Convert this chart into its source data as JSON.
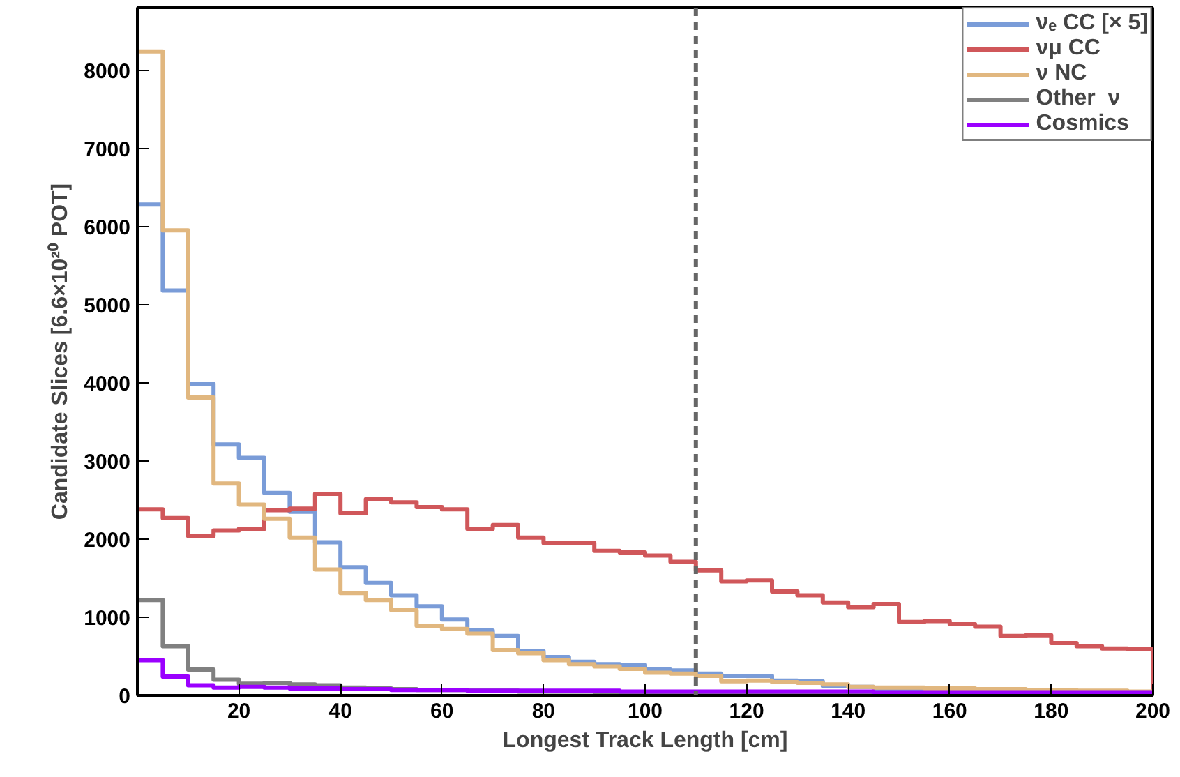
{
  "chart_data": {
    "type": "histogram",
    "xlabel": "Longest Track Length [cm]",
    "ylabel": "Candidate Slices [6.6×10²⁰ POT]",
    "bins": [
      0,
      5,
      10,
      15,
      20,
      25,
      30,
      35,
      40,
      45,
      50,
      55,
      60,
      65,
      70,
      75,
      80,
      85,
      90,
      95,
      100,
      105,
      110,
      115,
      120,
      125,
      130,
      135,
      140,
      145,
      150,
      155,
      160,
      165,
      170,
      175,
      180,
      185,
      190,
      195,
      200
    ],
    "series": [
      {
        "name": "νₑ CC [× 5]",
        "color": "#7a9cd8",
        "values": [
          6280,
          5180,
          3990,
          3210,
          3040,
          2590,
          2350,
          1960,
          1640,
          1440,
          1280,
          1140,
          970,
          830,
          760,
          570,
          490,
          430,
          400,
          390,
          330,
          320,
          280,
          250,
          250,
          190,
          180,
          120,
          110,
          90,
          80,
          70,
          70,
          60,
          60,
          50,
          50,
          40,
          40,
          40
        ]
      },
      {
        "name": "νμ CC",
        "color": "#d0575a",
        "values": [
          2380,
          2270,
          2040,
          2110,
          2130,
          2370,
          2390,
          2580,
          2330,
          2510,
          2470,
          2410,
          2380,
          2130,
          2180,
          2020,
          1950,
          1950,
          1850,
          1830,
          1790,
          1710,
          1600,
          1460,
          1470,
          1330,
          1280,
          1190,
          1130,
          1170,
          940,
          950,
          910,
          880,
          760,
          770,
          670,
          630,
          600,
          590
        ]
      },
      {
        "name": "ν NC",
        "color": "#e1b77f",
        "values": [
          8240,
          5950,
          3810,
          2710,
          2440,
          2260,
          2020,
          1610,
          1310,
          1220,
          1090,
          890,
          850,
          790,
          580,
          540,
          450,
          400,
          370,
          340,
          290,
          280,
          250,
          180,
          190,
          170,
          160,
          140,
          110,
          100,
          100,
          90,
          90,
          80,
          80,
          70,
          70,
          60,
          60,
          50
        ]
      },
      {
        "name": "Other  ν",
        "color": "#808080",
        "values": [
          1220,
          630,
          330,
          200,
          150,
          160,
          140,
          130,
          100,
          90,
          80,
          70,
          70,
          60,
          60,
          50,
          50,
          50,
          40,
          40,
          40,
          40,
          40,
          30,
          30,
          30,
          30,
          30,
          30,
          20,
          20,
          20,
          20,
          20,
          20,
          20,
          20,
          20,
          20,
          20
        ]
      },
      {
        "name": "Cosmics",
        "color": "#9b00ff",
        "values": [
          450,
          240,
          130,
          100,
          110,
          100,
          90,
          90,
          80,
          80,
          70,
          70,
          70,
          60,
          60,
          60,
          60,
          60,
          60,
          50,
          50,
          50,
          50,
          50,
          50,
          50,
          50,
          50,
          50,
          40,
          40,
          40,
          40,
          40,
          40,
          40,
          40,
          40,
          40,
          40
        ]
      }
    ],
    "xlim": [
      0,
      200
    ],
    "ylim": [
      0,
      8800
    ],
    "xticks": [
      20,
      40,
      60,
      80,
      100,
      120,
      140,
      160,
      180,
      200
    ],
    "yticks": [
      0,
      1000,
      2000,
      3000,
      4000,
      5000,
      6000,
      7000,
      8000
    ],
    "ref_lines": [
      {
        "axis": "x",
        "value": 110,
        "color": "#666666",
        "line_style": "dashed"
      }
    ],
    "grid": false,
    "legend": "top right"
  }
}
